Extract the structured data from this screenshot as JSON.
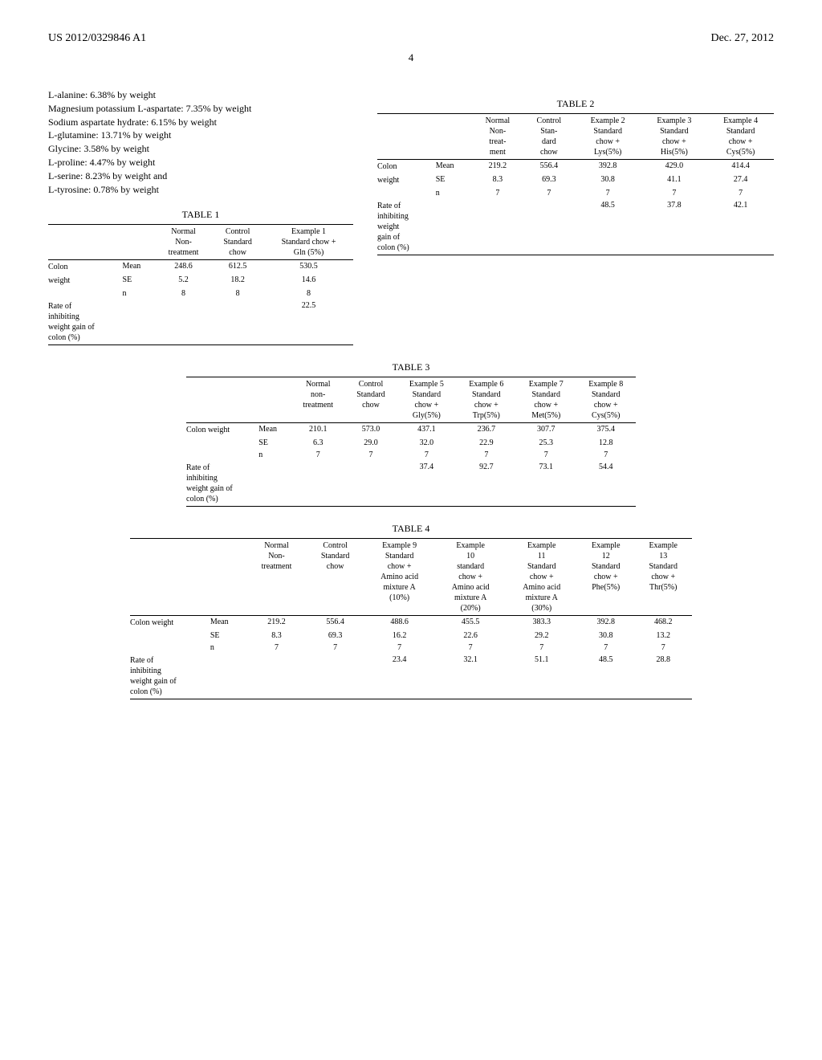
{
  "header": {
    "pub_number": "US 2012/0329846 A1",
    "pub_date": "Dec. 27, 2012",
    "page": "4"
  },
  "ingredients": [
    "L-alanine: 6.38% by weight",
    "Magnesium potassium L-aspartate: 7.35% by weight",
    "Sodium aspartate hydrate: 6.15% by weight",
    "L-glutamine: 13.71% by weight",
    "Glycine: 3.58% by weight",
    "L-proline: 4.47% by weight",
    "L-serine: 8.23% by weight and",
    "L-tyrosine: 0.78% by weight"
  ],
  "table1": {
    "title": "TABLE 1",
    "columns": [
      "",
      "",
      "Normal\nNon-\ntreatment",
      "Control\nStandard\nchow",
      "Example 1\nStandard chow +\nGln (5%)"
    ],
    "rows": [
      [
        "Colon",
        "Mean",
        "248.6",
        "612.5",
        "530.5"
      ],
      [
        "weight",
        "SE",
        "5.2",
        "18.2",
        "14.6"
      ],
      [
        "",
        "n",
        "8",
        "8",
        "8"
      ],
      [
        "Rate of\ninhibiting\nweight gain of\ncolon (%)",
        "",
        "",
        "",
        "22.5"
      ]
    ]
  },
  "table2": {
    "title": "TABLE 2",
    "columns": [
      "",
      "",
      "Normal\nNon-\ntreat-\nment",
      "Control\nStan-\ndard\nchow",
      "Example 2\nStandard\nchow +\nLys(5%)",
      "Example 3\nStandard\nchow +\nHis(5%)",
      "Example 4\nStandard\nchow +\nCys(5%)"
    ],
    "rows": [
      [
        "Colon",
        "Mean",
        "219.2",
        "556.4",
        "392.8",
        "429.0",
        "414.4"
      ],
      [
        "weight",
        "SE",
        "8.3",
        "69.3",
        "30.8",
        "41.1",
        "27.4"
      ],
      [
        "",
        "n",
        "7",
        "7",
        "7",
        "7",
        "7"
      ],
      [
        "Rate of\ninhibiting\nweight\ngain of\ncolon (%)",
        "",
        "",
        "",
        "48.5",
        "37.8",
        "42.1"
      ]
    ]
  },
  "table3": {
    "title": "TABLE 3",
    "columns": [
      "",
      "",
      "Normal\nnon-\ntreatment",
      "Control\nStandard\nchow",
      "Example 5\nStandard\nchow +\nGly(5%)",
      "Example 6\nStandard\nchow +\nTrp(5%)",
      "Example 7\nStandard\nchow +\nMet(5%)",
      "Example 8\nStandard\nchow +\nCys(5%)"
    ],
    "rows": [
      [
        "Colon weight",
        "Mean",
        "210.1",
        "573.0",
        "437.1",
        "236.7",
        "307.7",
        "375.4"
      ],
      [
        "",
        "SE",
        "6.3",
        "29.0",
        "32.0",
        "22.9",
        "25.3",
        "12.8"
      ],
      [
        "",
        "n",
        "7",
        "7",
        "7",
        "7",
        "7",
        "7"
      ],
      [
        "Rate of\ninhibiting\nweight gain of\ncolon (%)",
        "",
        "",
        "",
        "37.4",
        "92.7",
        "73.1",
        "54.4"
      ]
    ]
  },
  "table4": {
    "title": "TABLE 4",
    "columns": [
      "",
      "",
      "Normal\nNon-\ntreatment",
      "Control\nStandard\nchow",
      "Example 9\nStandard\nchow +\nAmino acid\nmixture A\n(10%)",
      "Example\n10\nstandard\nchow +\nAmino acid\nmixture A\n(20%)",
      "Example\n11\nStandard\nchow +\nAmino acid\nmixture A\n(30%)",
      "Example\n12\nStandard\nchow +\nPhe(5%)",
      "Example\n13\nStandard\nchow +\nThr(5%)"
    ],
    "rows": [
      [
        "Colon weight",
        "Mean",
        "219.2",
        "556.4",
        "488.6",
        "455.5",
        "383.3",
        "392.8",
        "468.2"
      ],
      [
        "",
        "SE",
        "8.3",
        "69.3",
        "16.2",
        "22.6",
        "29.2",
        "30.8",
        "13.2"
      ],
      [
        "",
        "n",
        "7",
        "7",
        "7",
        "7",
        "7",
        "7",
        "7"
      ],
      [
        "Rate of\ninhibiting\nweight gain of\ncolon (%)",
        "",
        "",
        "",
        "23.4",
        "32.1",
        "51.1",
        "48.5",
        "28.8"
      ]
    ]
  }
}
